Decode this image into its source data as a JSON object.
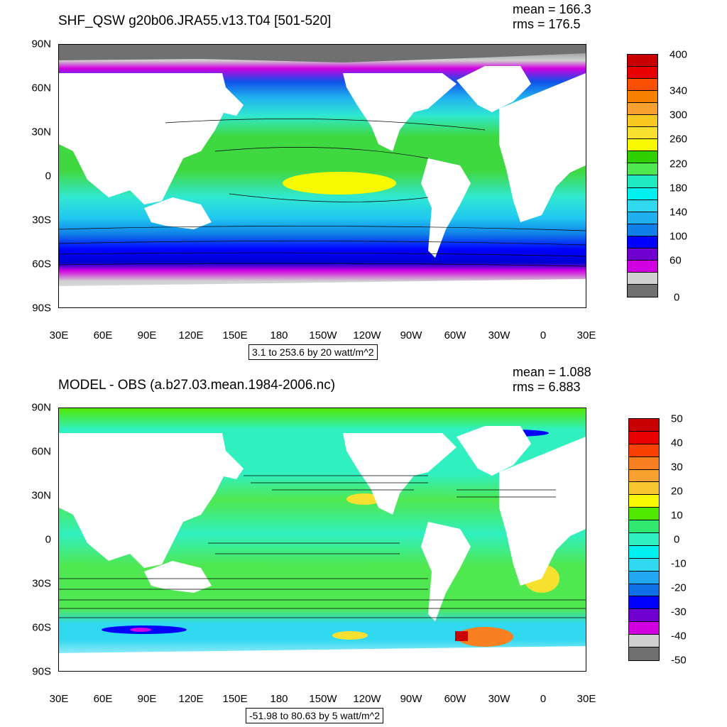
{
  "panels": [
    {
      "title": "SHF_QSW g20b06.JRA55.v13.T04 [501-520]",
      "stats": {
        "mean": "mean = 166.3",
        "rms": "rms = 176.5"
      },
      "contour_info": "3.1 to 253.6 by 20 watt/m^2",
      "lat_labels": [
        "90N",
        "60N",
        "30N",
        "0",
        "30S",
        "60S",
        "90S"
      ],
      "lon_labels": [
        "30E",
        "60E",
        "90E",
        "120E",
        "150E",
        "180",
        "150W",
        "120W",
        "90W",
        "60W",
        "30W",
        "0",
        "30E"
      ],
      "colorbar_labels": [
        "400",
        "340",
        "300",
        "260",
        "220",
        "180",
        "140",
        "100",
        "60",
        "0"
      ],
      "colorbar_colors": [
        "#c80000",
        "#e80000",
        "#f85000",
        "#f88000",
        "#f8a030",
        "#f8c820",
        "#f8e030",
        "#f8f800",
        "#30d000",
        "#50e850",
        "#20e8c0",
        "#00f0f0",
        "#30d8f0",
        "#20b0f0",
        "#1080e8",
        "#0000ff",
        "#7000d0",
        "#d000e0",
        "#d0d0d0",
        "#707070"
      ]
    },
    {
      "title": "MODEL - OBS (a.b27.03.mean.1984-2006.nc)",
      "stats": {
        "mean": "mean = 1.088",
        "rms": "rms = 6.883"
      },
      "contour_info": "-51.98 to 80.63 by 5 watt/m^2",
      "lat_labels": [
        "90N",
        "60N",
        "30N",
        "0",
        "30S",
        "60S",
        "90S"
      ],
      "lon_labels": [
        "30E",
        "60E",
        "90E",
        "120E",
        "150E",
        "180",
        "150W",
        "120W",
        "90W",
        "60W",
        "30W",
        "0",
        "30E"
      ],
      "colorbar_labels": [
        "50",
        "40",
        "30",
        "20",
        "10",
        "0",
        "-10",
        "-20",
        "-30",
        "-40",
        "-50"
      ],
      "colorbar_colors": [
        "#c80000",
        "#e80000",
        "#f84000",
        "#f88020",
        "#f8a030",
        "#f8c830",
        "#f8f800",
        "#50e800",
        "#30e870",
        "#30f0c0",
        "#00f0f0",
        "#30d8f0",
        "#20a8f0",
        "#1070e8",
        "#0000ff",
        "#7000d0",
        "#d000e0",
        "#d0d0d0",
        "#707070"
      ]
    }
  ]
}
